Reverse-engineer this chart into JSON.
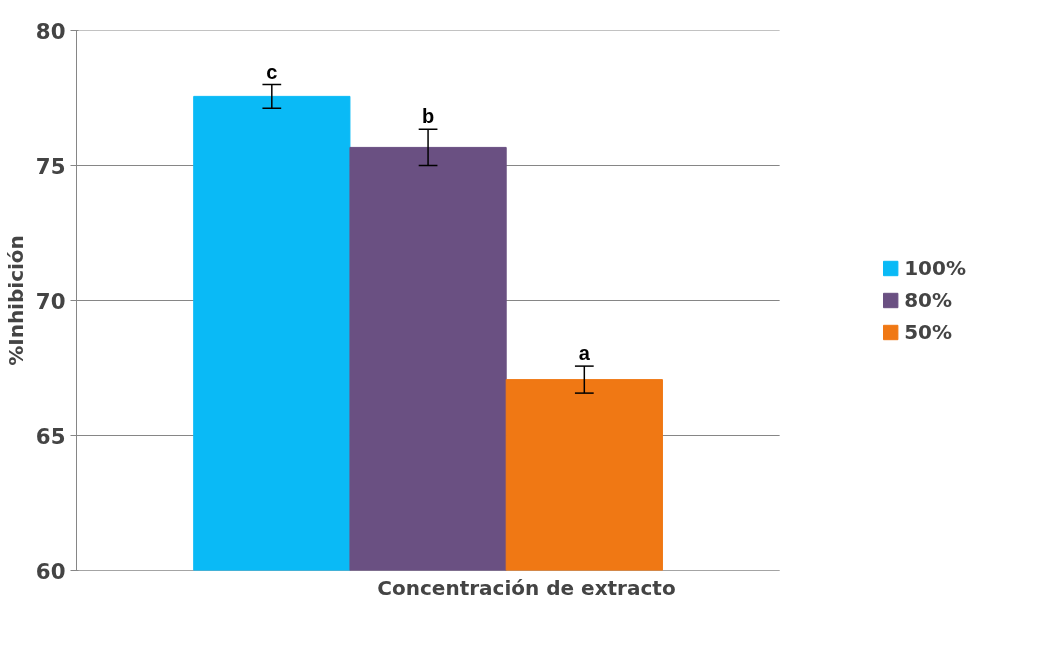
{
  "chart_data": {
    "type": "bar",
    "xlabel": "Concentración de extracto",
    "ylabel": "%Inhibición",
    "categories": [
      null
    ],
    "series": [
      {
        "name": "100%",
        "color": "#0abaf6",
        "values": [
          77.56
        ],
        "errors": [
          0.44
        ]
      },
      {
        "name": "80%",
        "color": "#6a5082",
        "values": [
          75.67
        ],
        "errors": [
          0.67
        ]
      },
      {
        "name": "50%",
        "color": "#f07814",
        "values": [
          67.07
        ],
        "errors": [
          0.5
        ]
      }
    ],
    "annotations": [
      "c",
      "b",
      "a"
    ],
    "ylim": [
      60,
      80
    ],
    "yticks": [
      60,
      65,
      70,
      75,
      80
    ],
    "grid": "y",
    "legend": "right"
  }
}
